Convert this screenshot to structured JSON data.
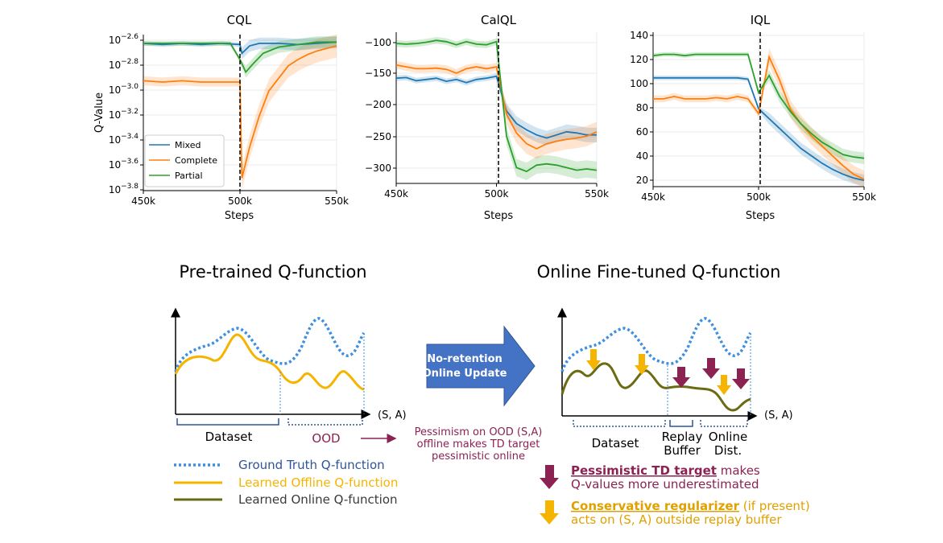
{
  "chart_data": [
    {
      "type": "line",
      "title": "CQL",
      "xlabel": "Steps",
      "ylabel": "Q-Value",
      "xlim": [
        450,
        550
      ],
      "xticks": [
        "450k",
        "500k",
        "550k"
      ],
      "yscale": "log",
      "yticks_exp": [
        "−2.6",
        "−2.8",
        "−3.0",
        "−3.2",
        "−3.4",
        "−3.6",
        "−3.8"
      ],
      "ylim_log10": [
        -3.8,
        -2.55
      ],
      "vline_x": 500,
      "legend": "lower-left",
      "series": [
        {
          "name": "Mixed",
          "color": "#1f77b4",
          "x": [
            450,
            460,
            470,
            480,
            490,
            500,
            501,
            505,
            510,
            520,
            530,
            540,
            550
          ],
          "log10_y": [
            -2.62,
            -2.63,
            -2.62,
            -2.63,
            -2.62,
            -2.63,
            -2.7,
            -2.64,
            -2.62,
            -2.62,
            -2.63,
            -2.62,
            -2.61
          ]
        },
        {
          "name": "Complete",
          "color": "#ff7f0e",
          "x": [
            450,
            460,
            470,
            480,
            490,
            500,
            501,
            505,
            510,
            515,
            520,
            525,
            530,
            535,
            540,
            545,
            550
          ],
          "log10_y": [
            -2.92,
            -2.93,
            -2.92,
            -2.93,
            -2.93,
            -2.93,
            -3.7,
            -3.45,
            -3.2,
            -3.0,
            -2.9,
            -2.8,
            -2.75,
            -2.71,
            -2.68,
            -2.66,
            -2.64
          ]
        },
        {
          "name": "Partial",
          "color": "#2ca02c",
          "x": [
            450,
            460,
            470,
            480,
            490,
            495,
            500,
            503,
            507,
            512,
            520,
            530,
            540,
            550
          ],
          "log10_y": [
            -2.62,
            -2.62,
            -2.62,
            -2.62,
            -2.62,
            -2.62,
            -2.75,
            -2.85,
            -2.78,
            -2.7,
            -2.65,
            -2.63,
            -2.61,
            -2.61
          ]
        }
      ]
    },
    {
      "type": "line",
      "title": "CalQL",
      "xlabel": "Steps",
      "ylabel": "",
      "xlim": [
        450,
        550
      ],
      "xticks": [
        "450k",
        "500k",
        "550k"
      ],
      "yticks": [
        "−100",
        "−150",
        "−200",
        "−250",
        "−300"
      ],
      "ylim": [
        -325,
        -85
      ],
      "vline_x": 500,
      "series": [
        {
          "name": "Mixed",
          "color": "#1f77b4",
          "x": [
            450,
            455,
            460,
            465,
            470,
            475,
            480,
            485,
            490,
            495,
            500,
            505,
            510,
            515,
            520,
            525,
            530,
            535,
            540,
            545,
            550
          ],
          "y": [
            -158,
            -157,
            -162,
            -160,
            -158,
            -163,
            -160,
            -165,
            -160,
            -158,
            -155,
            -210,
            -230,
            -240,
            -248,
            -253,
            -248,
            -243,
            -245,
            -248,
            -248
          ]
        },
        {
          "name": "Complete",
          "color": "#ff7f0e",
          "x": [
            450,
            455,
            460,
            465,
            470,
            475,
            480,
            485,
            490,
            495,
            500,
            505,
            510,
            515,
            520,
            525,
            530,
            535,
            540,
            545,
            550
          ],
          "y": [
            -137,
            -140,
            -143,
            -143,
            -142,
            -144,
            -150,
            -143,
            -140,
            -143,
            -140,
            -215,
            -245,
            -262,
            -270,
            -262,
            -258,
            -255,
            -253,
            -250,
            -243
          ]
        },
        {
          "name": "Partial",
          "color": "#2ca02c",
          "x": [
            450,
            455,
            460,
            465,
            470,
            475,
            480,
            485,
            490,
            495,
            500,
            505,
            510,
            515,
            520,
            525,
            530,
            535,
            540,
            545,
            550
          ],
          "y": [
            -103,
            -104,
            -103,
            -101,
            -98,
            -100,
            -105,
            -100,
            -104,
            -105,
            -100,
            -250,
            -300,
            -306,
            -296,
            -294,
            -296,
            -300,
            -304,
            -302,
            -304
          ]
        }
      ]
    },
    {
      "type": "line",
      "title": "IQL",
      "xlabel": "Steps",
      "ylabel": "",
      "xlim": [
        450,
        550
      ],
      "xticks": [
        "450k",
        "500k",
        "550k"
      ],
      "yticks": [
        "140",
        "120",
        "100",
        "80",
        "60",
        "40",
        "20"
      ],
      "ylim": [
        17,
        142
      ],
      "vline_x": 500,
      "series": [
        {
          "name": "Mixed",
          "color": "#1f77b4",
          "x": [
            450,
            460,
            470,
            480,
            490,
            495,
            500,
            505,
            510,
            515,
            520,
            525,
            530,
            535,
            540,
            545,
            550
          ],
          "y": [
            105,
            105,
            105,
            105,
            105,
            104,
            80,
            72,
            64,
            56,
            48,
            42,
            36,
            31,
            27,
            24,
            22
          ]
        },
        {
          "name": "Complete",
          "color": "#ff7f0e",
          "x": [
            450,
            455,
            460,
            465,
            470,
            475,
            480,
            485,
            490,
            495,
            500,
            505,
            510,
            515,
            520,
            525,
            530,
            535,
            540,
            545,
            550
          ],
          "y": [
            88,
            88,
            90,
            88,
            88,
            88,
            89,
            88,
            90,
            88,
            76,
            122,
            103,
            80,
            68,
            58,
            50,
            42,
            34,
            27,
            23
          ]
        },
        {
          "name": "Partial",
          "color": "#2ca02c",
          "x": [
            450,
            455,
            460,
            465,
            470,
            475,
            480,
            485,
            490,
            495,
            500,
            505,
            510,
            515,
            520,
            525,
            530,
            535,
            540,
            545,
            550
          ],
          "y": [
            123,
            124,
            124,
            123,
            124,
            124,
            124,
            124,
            124,
            124,
            93,
            107,
            90,
            78,
            68,
            60,
            53,
            48,
            43,
            41,
            40
          ]
        }
      ]
    }
  ],
  "diagram": {
    "left_title": "Pre-trained Q-function",
    "right_title": "Online Fine-tuned Q-function",
    "axis_label": "(S, A)",
    "dataset_label": "Dataset",
    "ood_label": "OOD",
    "replay_label_1": "Replay",
    "replay_label_2": "Buffer",
    "online_label_1": "Online",
    "online_label_2": "Dist.",
    "arrow_text_1": "No-retention",
    "arrow_text_2": "Online Update",
    "pessimism_note": [
      "Pessimism on OOD (S,A)",
      "offline makes TD target",
      "pessimistic online"
    ],
    "legend": [
      {
        "label": "Ground Truth Q-function",
        "color": "#3d8fe0"
      },
      {
        "label": "Learned Offline Q-function",
        "color": "#f5b400"
      },
      {
        "label": "Learned Online Q-function",
        "color": "#6b6b14"
      }
    ],
    "callout_1_bold": "Pessimistic TD target",
    "callout_1_rest": " makes",
    "callout_1_line2": "Q-values more underestimated",
    "callout_2_bold": "Conservative regularizer",
    "callout_2_rest": " (if present)",
    "callout_2_line2": "acts on (S, A) outside replay buffer",
    "colors": {
      "maroon": "#8b2252",
      "gold": "#f5b400",
      "olive": "#6b6b14",
      "blue_text": "#2f5597",
      "arrow_blue": "#4472c4"
    }
  }
}
